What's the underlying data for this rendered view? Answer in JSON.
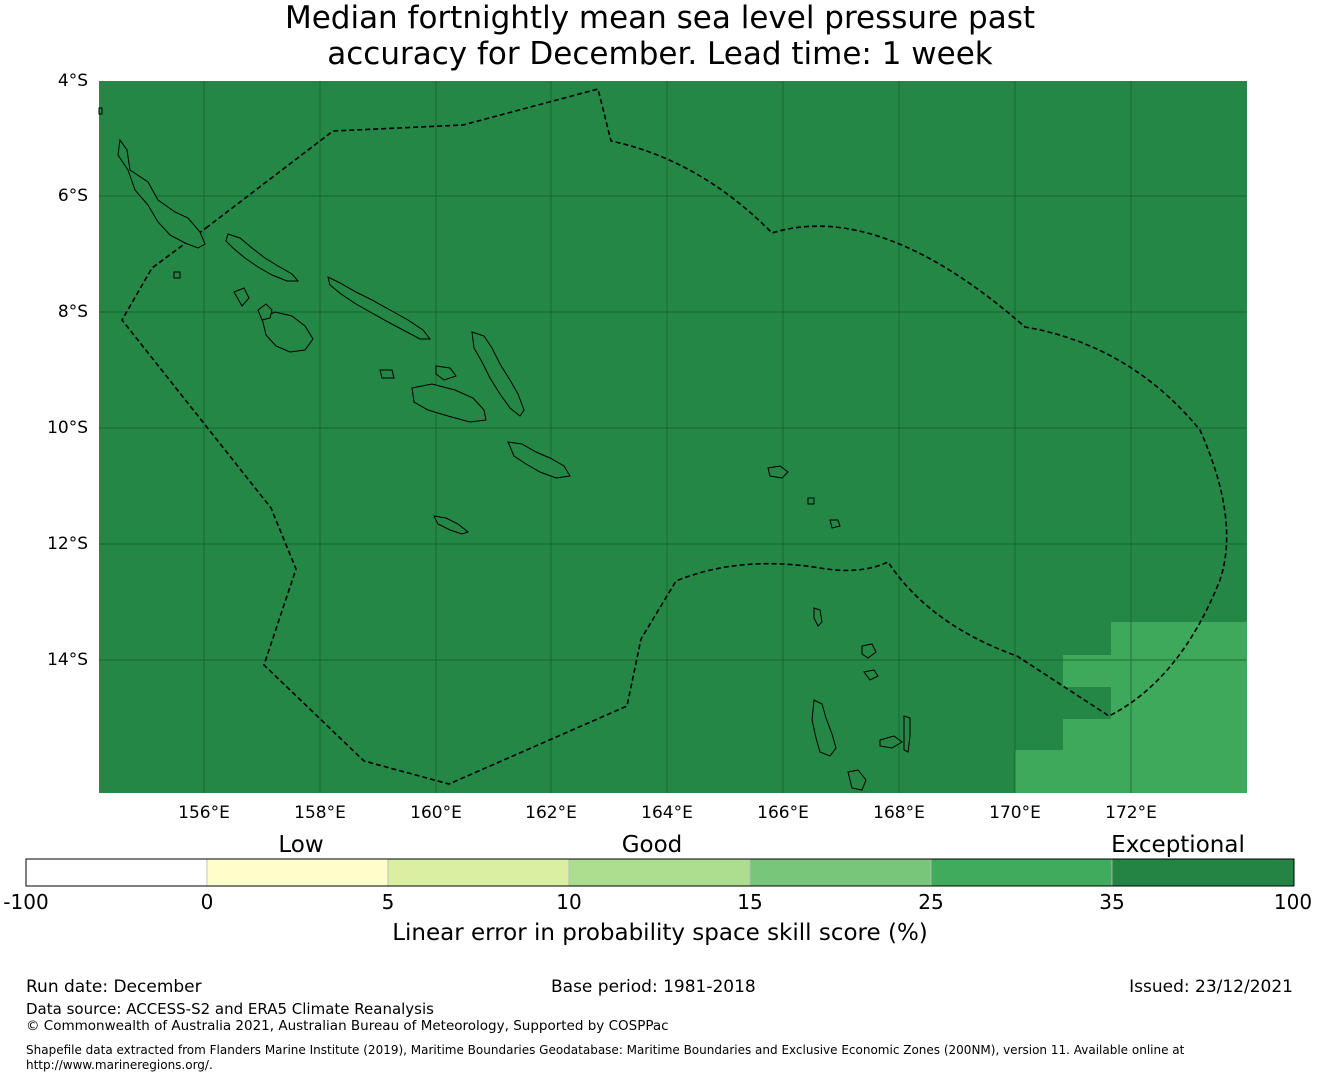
{
  "title": {
    "line1": "Median fortnightly mean sea level pressure past",
    "line2": "accuracy for December. Lead time: 1 week"
  },
  "map": {
    "latitude_labels": [
      "4°S",
      "6°S",
      "8°S",
      "10°S",
      "12°S",
      "14°S"
    ],
    "longitude_labels": [
      "156°E",
      "158°E",
      "160°E",
      "162°E",
      "164°E",
      "166°E",
      "168°E",
      "170°E",
      "172°E"
    ],
    "colors": {
      "exceptional_fill": "#248745",
      "skill_25_35_fill": "#3ea95a",
      "coastline": "#000000",
      "eez_boundary": "#000000"
    }
  },
  "colorbar": {
    "category_labels": [
      "Low",
      "Good",
      "Exceptional"
    ],
    "tick_labels": [
      "-100",
      "0",
      "5",
      "10",
      "15",
      "25",
      "35",
      "100"
    ],
    "segment_colors": [
      "#ffffff",
      "#ffffcc",
      "#d9f0a3",
      "#addd8e",
      "#78c679",
      "#41ab5d",
      "#238443"
    ],
    "label": "Linear error in probability space skill score (%)"
  },
  "footer": {
    "run_date": "Run date: December",
    "base_period": "Base period: 1981-2018",
    "issued": "Issued: 23/12/2021",
    "data_source": "Data source: ACCESS-S2 and ERA5 Climate Reanalysis",
    "copyright": "© Commonwealth of Australia 2021, Australian Bureau of Meteorology, Supported by COSPPac",
    "shapefile_line1": "Shapefile data extracted from Flanders Marine Institute (2019), Maritime Boundaries Geodatabase: Maritime Boundaries and Exclusive Economic Zones (200NM), version 11. Available online at",
    "shapefile_line2": "http://www.marineregions.org/."
  }
}
